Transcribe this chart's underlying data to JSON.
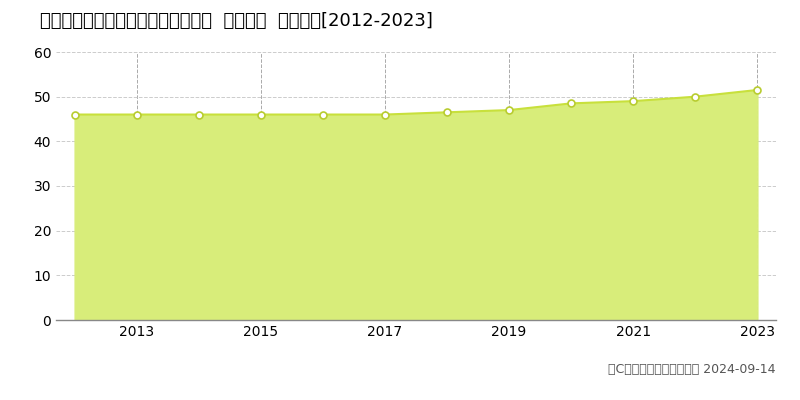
{
  "title": "大阪府堺市西区鳳西町１丁８２番２  地価公示  地価推移[2012-2023]",
  "years": [
    2012,
    2013,
    2014,
    2015,
    2016,
    2017,
    2018,
    2019,
    2020,
    2021,
    2022,
    2023
  ],
  "values": [
    46.0,
    46.0,
    46.0,
    46.0,
    46.0,
    46.0,
    46.5,
    47.0,
    48.5,
    49.0,
    50.0,
    51.5
  ],
  "line_color": "#c8e03c",
  "fill_color": "#d8ed7a",
  "marker_color": "#ffffff",
  "marker_edge_color": "#b8cc30",
  "ylim": [
    0,
    60
  ],
  "yticks": [
    0,
    10,
    20,
    30,
    40,
    50,
    60
  ],
  "xticks": [
    2013,
    2015,
    2017,
    2019,
    2021,
    2023
  ],
  "grid_color_h": "#cccccc",
  "grid_color_v": "#aaaaaa",
  "bg_color": "#ffffff",
  "copyright_text": "（C）土地価格ドットコム 2024-09-14",
  "title_fontsize": 13,
  "axis_fontsize": 10,
  "legend_fontsize": 10,
  "copyright_fontsize": 9
}
